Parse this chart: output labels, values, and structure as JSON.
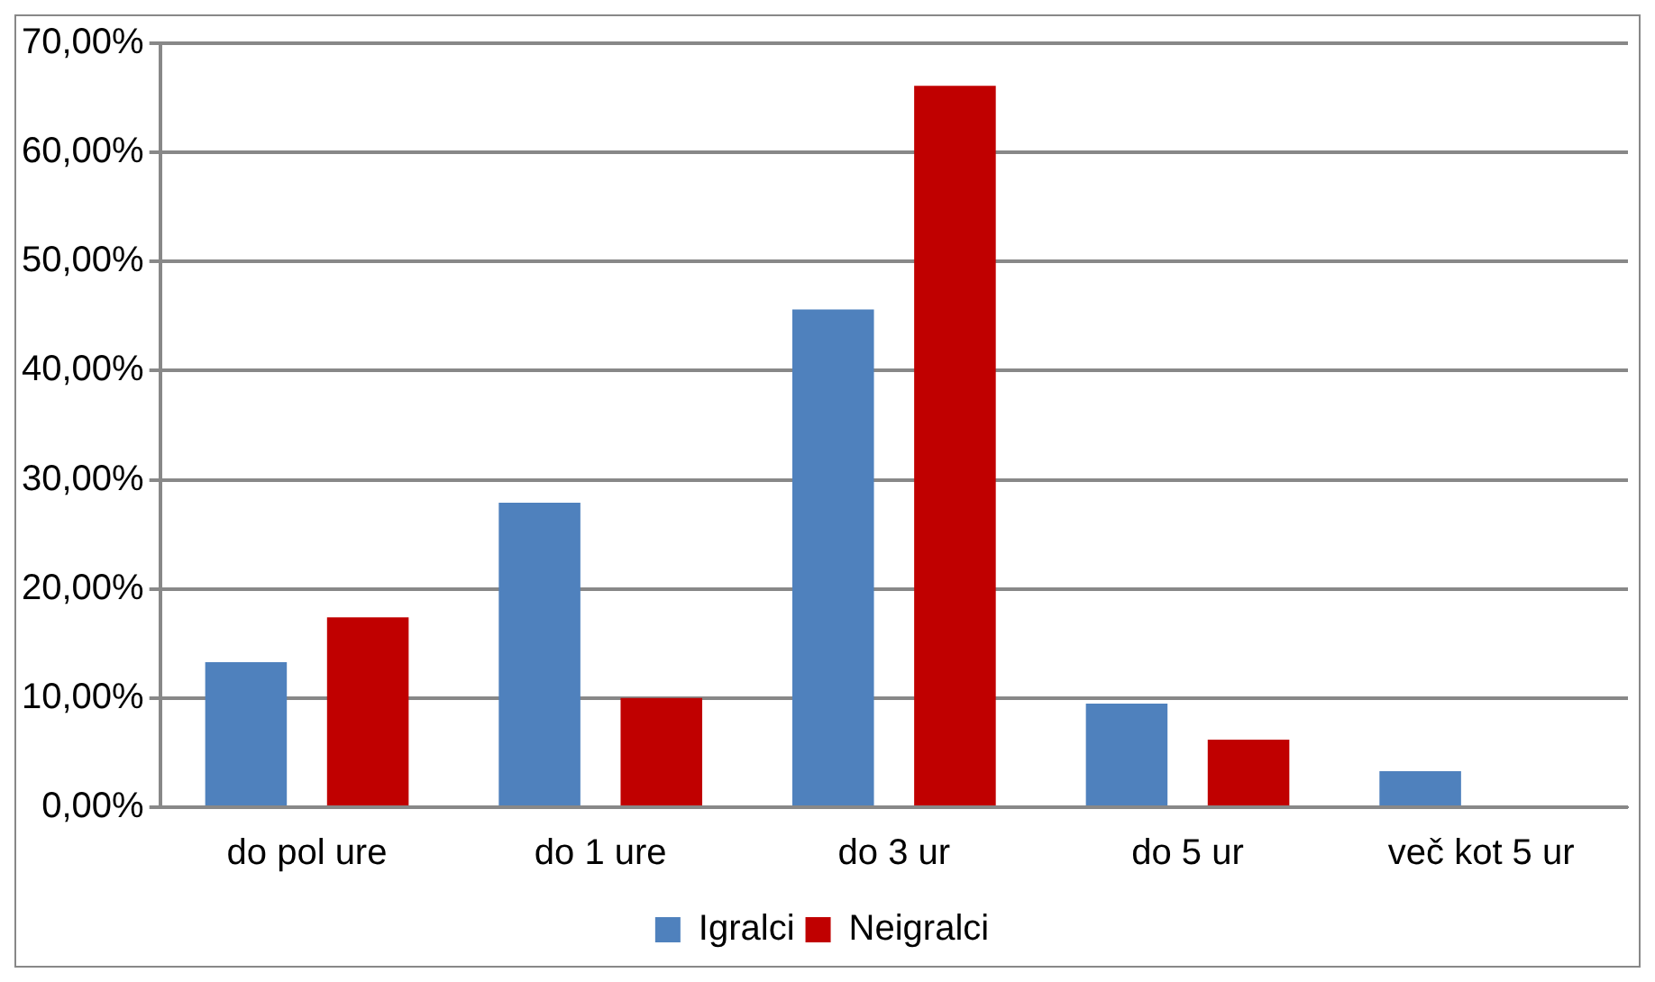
{
  "chart_data": {
    "type": "bar",
    "categories": [
      "do pol ure",
      "do 1 ure",
      "do 3 ur",
      "do 5 ur",
      "več kot 5 ur"
    ],
    "series": [
      {
        "name": "Igralci",
        "color": "#4f81bd",
        "values": [
          13.3,
          27.9,
          45.6,
          9.5,
          3.3
        ]
      },
      {
        "name": "Neigralci",
        "color": "#c00000",
        "values": [
          17.4,
          10.0,
          66.1,
          6.2,
          0
        ]
      }
    ],
    "ylim": [
      0,
      70
    ],
    "yticks": [
      {
        "value": 0,
        "label": "0,00%"
      },
      {
        "value": 10,
        "label": "10,00%"
      },
      {
        "value": 20,
        "label": "20,00%"
      },
      {
        "value": 30,
        "label": "30,00%"
      },
      {
        "value": 40,
        "label": "40,00%"
      },
      {
        "value": 50,
        "label": "50,00%"
      },
      {
        "value": 60,
        "label": "60,00%"
      },
      {
        "value": 70,
        "label": "70,00%"
      }
    ],
    "grid": "y",
    "legend": "bottom"
  }
}
